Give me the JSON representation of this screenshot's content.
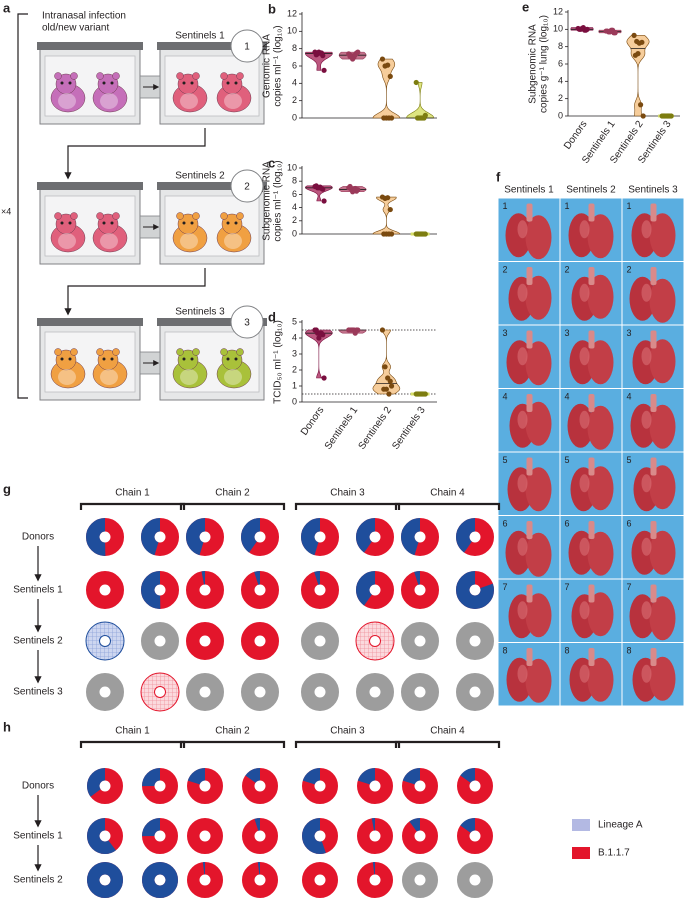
{
  "a": {
    "label": "a",
    "infection": [
      "Intranasal infection",
      "old/new variant"
    ],
    "repeat": "×4",
    "stages": [
      {
        "name": "Sentinels 1",
        "number": "1"
      },
      {
        "name": "Sentinels 2",
        "number": "2"
      },
      {
        "name": "Sentinels 3",
        "number": "3"
      }
    ]
  },
  "chart_data": [
    {
      "type": "violin",
      "label": "b",
      "ylabel": [
        "Genomic RNA",
        "copies ml⁻¹ (log₁₀)"
      ],
      "ylim": [
        0,
        12
      ],
      "yticks": [
        0,
        2,
        4,
        6,
        8,
        10,
        12
      ],
      "series": [
        {
          "color": "#7a0f3f",
          "fill": "#b03a68",
          "values": [
            7.6,
            7.4,
            7.5,
            7.2,
            7.3,
            7.6,
            7.5,
            5.5
          ]
        },
        {
          "color": "#9b3a5a",
          "fill": "#b85a78",
          "values": [
            7.4,
            7.2,
            7.0,
            7.5,
            7.1,
            6.8,
            7.3,
            7.6
          ]
        },
        {
          "color": "#7a4a10",
          "fill": "#f5c48a",
          "values": [
            6.8,
            6.0,
            6.1,
            4.8,
            0,
            0,
            0,
            0
          ]
        },
        {
          "color": "#7d7d10",
          "fill": "#d8e06a",
          "values": [
            4.1,
            0,
            0,
            0,
            0,
            0,
            0,
            0.3
          ]
        }
      ]
    },
    {
      "type": "violin",
      "label": "c",
      "ylabel": [
        "Subgenomic RNA",
        "copies ml⁻¹ (log₁₀)"
      ],
      "ylim": [
        0,
        10
      ],
      "yticks": [
        0,
        2,
        4,
        6,
        8,
        10
      ],
      "series": [
        {
          "color": "#7a0f3f",
          "fill": "#b03a68",
          "values": [
            7.2,
            7.0,
            7.1,
            6.8,
            7.3,
            7.0,
            6.9,
            5.0
          ]
        },
        {
          "color": "#9b3a5a",
          "fill": "#b85a78",
          "values": [
            7.0,
            6.8,
            6.6,
            6.5,
            7.2,
            6.4,
            6.9,
            6.7
          ]
        },
        {
          "color": "#7a4a10",
          "fill": "#f5c48a",
          "values": [
            5.6,
            5.4,
            5.5,
            3.7,
            0,
            0,
            0,
            0
          ]
        },
        {
          "color": "#7d7d10",
          "fill": "#d8e06a",
          "values": [
            0,
            0,
            0,
            0,
            0,
            0,
            0,
            0
          ]
        }
      ]
    },
    {
      "type": "violin",
      "label": "d",
      "ylabel": [
        "TCID₅₀ ml⁻¹ (log₁₀)"
      ],
      "ylim": [
        0,
        5
      ],
      "yticks": [
        0,
        1,
        2,
        3,
        4,
        5
      ],
      "hlines": [
        4.5,
        0.5
      ],
      "categories": [
        "Donors",
        "Sentinels 1",
        "Sentinels 2",
        "Sentinels 3"
      ],
      "series": [
        {
          "color": "#7a0f3f",
          "fill": "#b03a68",
          "values": [
            4.5,
            4.3,
            4.3,
            4.2,
            4.5,
            4.0,
            4.3,
            1.5
          ]
        },
        {
          "color": "#9b3a5a",
          "fill": "#b85a78",
          "values": [
            4.5,
            4.5,
            4.5,
            4.5,
            4.5,
            4.5,
            4.3,
            4.5
          ]
        },
        {
          "color": "#7a4a10",
          "fill": "#f5c48a",
          "values": [
            4.5,
            2.2,
            1.5,
            1.3,
            0.8,
            0.8,
            0.5,
            1.0
          ]
        },
        {
          "color": "#7d7d10",
          "fill": "#d8e06a",
          "values": [
            0.5,
            0.5,
            0.5,
            0.5,
            0.5,
            0.5,
            0.5,
            0.5
          ]
        }
      ]
    },
    {
      "type": "violin",
      "label": "e",
      "ylabel": [
        "Subgenomic RNA",
        "copies g⁻¹ lung (log₁₀)"
      ],
      "ylim": [
        0,
        12
      ],
      "yticks": [
        0,
        2,
        4,
        6,
        8,
        10,
        12
      ],
      "categories": [
        "Donors",
        "Sentinels 1",
        "Sentinels 2",
        "Sentinels 3"
      ],
      "series": [
        {
          "color": "#7a0f3f",
          "fill": "#b03a68",
          "values": [
            10.1,
            10.0,
            10.2,
            9.9,
            10.0,
            10.1,
            9.9,
            10.0
          ]
        },
        {
          "color": "#9b3a5a",
          "fill": "#b85a78",
          "values": [
            9.8,
            9.7,
            9.9,
            9.6,
            9.8,
            9.7,
            9.9,
            9.6
          ]
        },
        {
          "color": "#7a4a10",
          "fill": "#f5c48a",
          "values": [
            9.3,
            8.6,
            8.4,
            8.5,
            7.0,
            7.2,
            1.3,
            0
          ]
        },
        {
          "color": "#7d7d10",
          "fill": "#d8e06a",
          "values": [
            0,
            0,
            0,
            0,
            0,
            0,
            0,
            0
          ]
        }
      ]
    }
  ],
  "f": {
    "label": "f",
    "columns": [
      "Sentinels 1",
      "Sentinels 2",
      "Sentinels 3"
    ],
    "rows": [
      "1",
      "2",
      "3",
      "4",
      "5",
      "6",
      "7",
      "8"
    ]
  },
  "colors": {
    "lineage_a": "#1f4e9c",
    "b117": "#e3152b",
    "none": "#9d9d9d"
  },
  "g": {
    "label": "g",
    "chains": [
      "Chain 1",
      "Chain 2",
      "Chain 3",
      "Chain 4"
    ],
    "rows": [
      {
        "name": "Donors",
        "cells": [
          {
            "lineage_a": 50
          },
          {
            "lineage_a": 45
          },
          {
            "lineage_a": 45
          },
          {
            "lineage_a": 40
          },
          {
            "lineage_a": 45
          },
          {
            "lineage_a": 40
          },
          {
            "lineage_a": 45
          },
          {
            "lineage_a": 40
          }
        ]
      },
      {
        "name": "Sentinels 1",
        "cells": [
          {
            "lineage_a": 0
          },
          {
            "lineage_a": 50
          },
          {
            "lineage_a": 3
          },
          {
            "lineage_a": 5
          },
          {
            "lineage_a": 5
          },
          {
            "lineage_a": 40
          },
          {
            "lineage_a": 5
          },
          {
            "lineage_a": 80
          }
        ]
      },
      {
        "name": "Sentinels 2",
        "cells": [
          {
            "lineage_a": 100,
            "hatched": true
          },
          {
            "lineage_a": null
          },
          {
            "lineage_a": 0
          },
          {
            "lineage_a": 0
          },
          {
            "lineage_a": null
          },
          {
            "lineage_a": 0,
            "hatched": true
          },
          {
            "lineage_a": null
          },
          {
            "lineage_a": null
          }
        ]
      },
      {
        "name": "Sentinels 3",
        "cells": [
          {
            "lineage_a": null
          },
          {
            "lineage_a": 0,
            "hatched": true
          },
          {
            "lineage_a": null
          },
          {
            "lineage_a": null
          },
          {
            "lineage_a": null
          },
          {
            "lineage_a": null
          },
          {
            "lineage_a": null
          },
          {
            "lineage_a": null
          }
        ]
      }
    ]
  },
  "h": {
    "label": "h",
    "chains": [
      "Chain 1",
      "Chain 2",
      "Chain 3",
      "Chain 4"
    ],
    "rows": [
      {
        "name": "Donors",
        "cells": [
          {
            "lineage_a": 35
          },
          {
            "lineage_a": 25
          },
          {
            "lineage_a": 20
          },
          {
            "lineage_a": 15
          },
          {
            "lineage_a": 20
          },
          {
            "lineage_a": 20
          },
          {
            "lineage_a": 20
          },
          {
            "lineage_a": 15
          }
        ]
      },
      {
        "name": "Sentinels 1",
        "cells": [
          {
            "lineage_a": 60
          },
          {
            "lineage_a": 25
          },
          {
            "lineage_a": 0
          },
          {
            "lineage_a": 5
          },
          {
            "lineage_a": 55
          },
          {
            "lineage_a": 3
          },
          {
            "lineage_a": 10
          },
          {
            "lineage_a": 15
          }
        ]
      },
      {
        "name": "Sentinels 2",
        "cells": [
          {
            "lineage_a": 100
          },
          {
            "lineage_a": 100
          },
          {
            "lineage_a": 2
          },
          {
            "lineage_a": 2
          },
          {
            "lineage_a": 0
          },
          {
            "lineage_a": 2
          },
          {
            "lineage_a": null
          },
          {
            "lineage_a": null
          }
        ]
      }
    ]
  },
  "legend": [
    {
      "name": "Lineage A",
      "color": "#b3b9e3"
    },
    {
      "name": "B.1.1.7",
      "color": "#e3152b"
    }
  ]
}
